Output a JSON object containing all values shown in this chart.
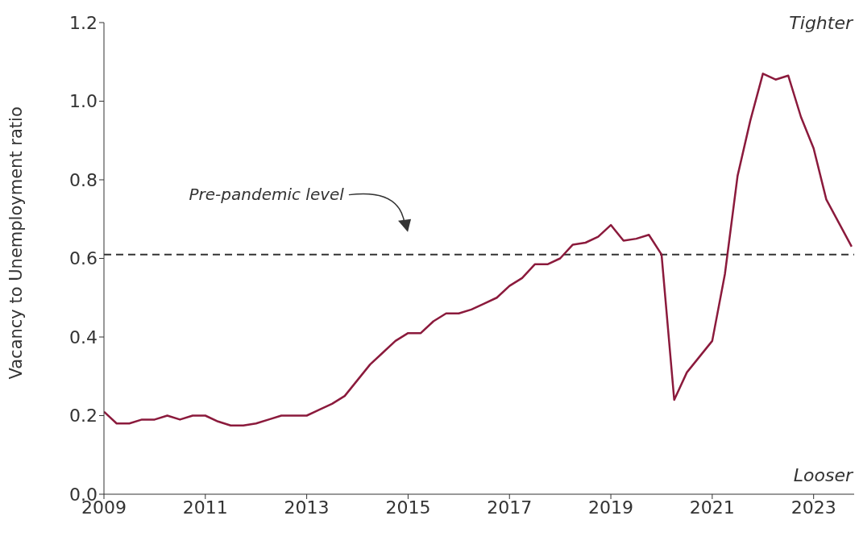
{
  "chart_data": {
    "type": "line",
    "ylabel": "Vacancy to Unemployment ratio",
    "x": [
      2009,
      2009.25,
      2009.5,
      2009.75,
      2010,
      2010.25,
      2010.5,
      2010.75,
      2011,
      2011.25,
      2011.5,
      2011.75,
      2012,
      2012.25,
      2012.5,
      2012.75,
      2013,
      2013.25,
      2013.5,
      2013.75,
      2014,
      2014.25,
      2014.5,
      2014.75,
      2015,
      2015.25,
      2015.5,
      2015.75,
      2016,
      2016.25,
      2016.5,
      2016.75,
      2017,
      2017.25,
      2017.5,
      2017.75,
      2018,
      2018.25,
      2018.5,
      2018.75,
      2019,
      2019.25,
      2019.5,
      2019.75,
      2020,
      2020.25,
      2020.5,
      2020.75,
      2021,
      2021.25,
      2021.5,
      2021.75,
      2022,
      2022.25,
      2022.5,
      2022.75,
      2023,
      2023.25,
      2023.5,
      2023.75
    ],
    "series": [
      {
        "color": "#8b1a3c",
        "values": [
          0.21,
          0.18,
          0.18,
          0.19,
          0.19,
          0.2,
          0.19,
          0.2,
          0.2,
          0.185,
          0.175,
          0.175,
          0.18,
          0.19,
          0.2,
          0.2,
          0.2,
          0.215,
          0.23,
          0.25,
          0.29,
          0.33,
          0.36,
          0.39,
          0.41,
          0.41,
          0.44,
          0.46,
          0.46,
          0.47,
          0.485,
          0.5,
          0.53,
          0.55,
          0.585,
          0.585,
          0.6,
          0.635,
          0.64,
          0.655,
          0.685,
          0.645,
          0.65,
          0.66,
          0.61,
          0.24,
          0.31,
          0.35,
          0.39,
          0.56,
          0.81,
          0.95,
          1.07,
          1.055,
          1.065,
          0.96,
          0.88,
          0.75,
          0.69,
          0.63
        ]
      }
    ],
    "xlim": [
      2009,
      2023.8
    ],
    "xticks": [
      2009,
      2011,
      2013,
      2015,
      2017,
      2019,
      2021,
      2023
    ],
    "ylim": [
      0,
      1.2
    ],
    "yticks": [
      {
        "value": 0,
        "label": "0.0"
      },
      {
        "value": 0.2,
        "label": "0.2"
      },
      {
        "value": 0.4,
        "label": "0.4"
      },
      {
        "value": 0.6,
        "label": "0.6"
      },
      {
        "value": 0.8,
        "label": "0.8"
      },
      {
        "value": 1,
        "label": "1.0"
      },
      {
        "value": 1.2,
        "label": "1.2"
      }
    ],
    "ref_lines": [
      {
        "axis": "y",
        "value": 0.61,
        "label": "Pre-pandemic level",
        "color": "#333333",
        "line_style": "dashed"
      }
    ],
    "annotations": [
      "Tighter",
      "Looser"
    ],
    "grid": false,
    "legend": false,
    "marker": "none",
    "line_style": "solid"
  }
}
